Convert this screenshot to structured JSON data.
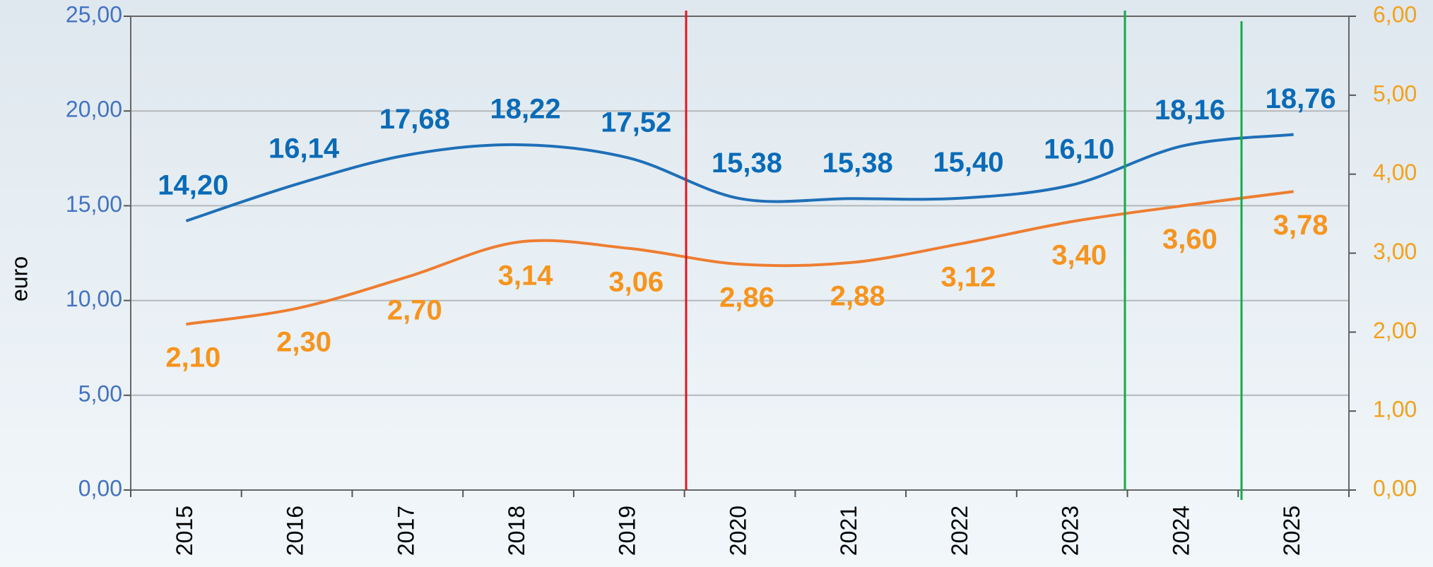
{
  "chart_data": {
    "type": "line",
    "ylabel": "euro",
    "categories": [
      "2015",
      "2016",
      "2017",
      "2018",
      "2019",
      "2020",
      "2021",
      "2022",
      "2023",
      "2024",
      "2025"
    ],
    "series": [
      {
        "color": "#1f6fb8",
        "label_color": "#0a6bb8",
        "values": [
          14.2,
          16.14,
          17.68,
          18.22,
          17.52,
          15.38,
          15.38,
          15.4,
          16.1,
          18.16,
          18.76
        ],
        "value_labels": [
          "14,20",
          "16,14",
          "17,68",
          "18,22",
          "17,52",
          "15,38",
          "15,38",
          "15,40",
          "16,10",
          "18,16",
          "18,76"
        ]
      },
      {
        "color": "#ee7d31",
        "label_color": "#f7941d",
        "axis": "y2",
        "values": [
          2.1,
          2.3,
          2.7,
          3.14,
          3.06,
          2.86,
          2.88,
          3.12,
          3.4,
          3.6,
          3.78
        ],
        "value_labels": [
          "2,10",
          "2,30",
          "2,70",
          "3,14",
          "3,06",
          "2,86",
          "2,88",
          "3,12",
          "3,40",
          "3,60",
          "3,78"
        ]
      }
    ],
    "ylim": [
      0,
      25
    ],
    "yticks": [
      {
        "value": 0,
        "label": "0,00"
      },
      {
        "value": 5,
        "label": "5,00"
      },
      {
        "value": 10,
        "label": "10,00"
      },
      {
        "value": 15,
        "label": "15,00"
      },
      {
        "value": 20,
        "label": "20,00"
      },
      {
        "value": 25,
        "label": "25,00"
      }
    ],
    "y2lim": [
      0,
      6
    ],
    "y2ticks": [
      {
        "value": 0,
        "label": "0,00"
      },
      {
        "value": 1,
        "label": "1,00"
      },
      {
        "value": 2,
        "label": "2,00"
      },
      {
        "value": 3,
        "label": "3,00"
      },
      {
        "value": 4,
        "label": "4,00"
      },
      {
        "value": 5,
        "label": "5,00"
      },
      {
        "value": 6,
        "label": "6,00"
      }
    ],
    "grid": true
  }
}
